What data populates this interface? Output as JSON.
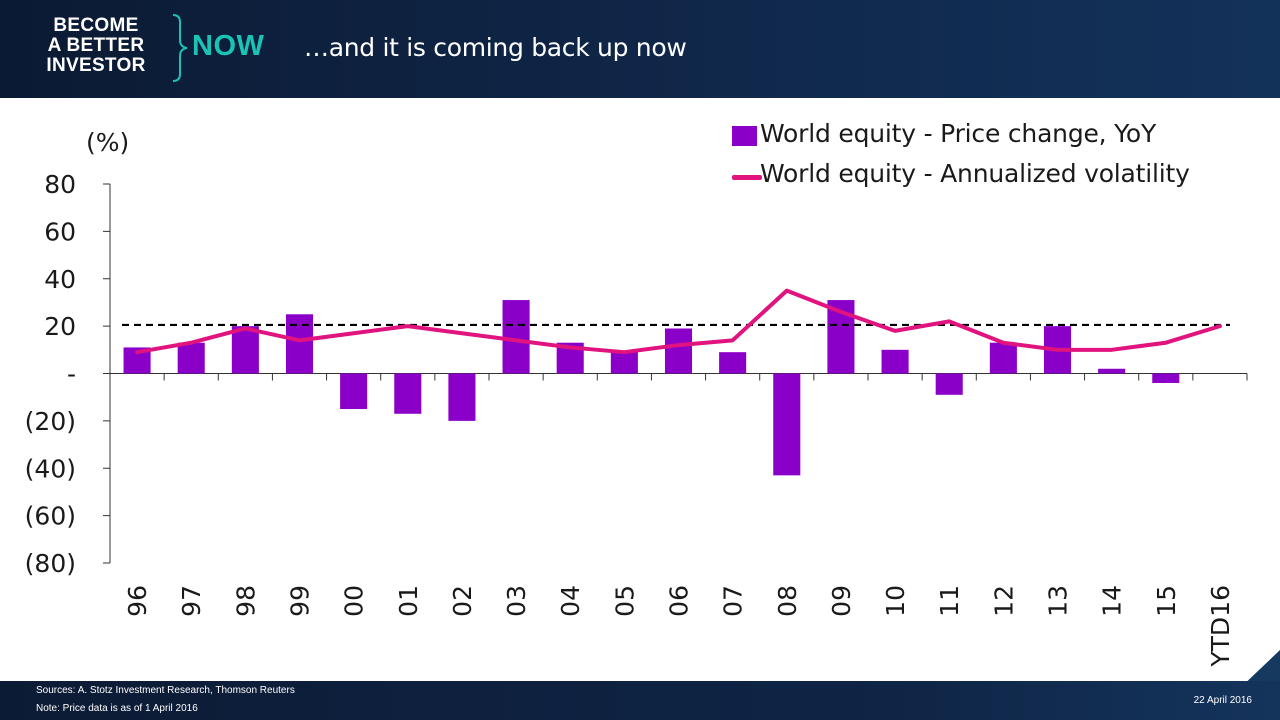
{
  "header": {
    "logo_line1": "BECOME",
    "logo_line2": "A BETTER",
    "logo_line3": "INVESTOR",
    "logo_now": "NOW",
    "title": "…and it is coming back up now"
  },
  "footer": {
    "sources": "Sources: A. Stotz Investment Research, Thomson Reuters",
    "note": "Note: Price data is as of 1 April 2016",
    "date": "22 April 2016"
  },
  "colors": {
    "bar": "#8b00c9",
    "line": "#e0137f",
    "header_bg": "#0f2546",
    "accent": "#19c3b6"
  },
  "chart_data": {
    "type": "bar",
    "unit_label": "(%)",
    "categories": [
      "96",
      "97",
      "98",
      "99",
      "00",
      "01",
      "02",
      "03",
      "04",
      "05",
      "06",
      "07",
      "08",
      "09",
      "10",
      "11",
      "12",
      "13",
      "14",
      "15",
      "YTD16"
    ],
    "series": [
      {
        "name": "World equity - Price change, YoY",
        "type": "bar",
        "values": [
          11,
          13,
          20,
          25,
          -15,
          -17,
          -20,
          31,
          13,
          9,
          19,
          9,
          -43,
          31,
          10,
          -9,
          13,
          20,
          2,
          -4,
          null
        ]
      },
      {
        "name": "World equity - Annualized volatility",
        "type": "line",
        "values": [
          9,
          13,
          19,
          14,
          17,
          20,
          17,
          14,
          11,
          9,
          12,
          14,
          35,
          26,
          18,
          22,
          13,
          10,
          10,
          13,
          20
        ]
      }
    ],
    "reference_line": {
      "value": 20.5,
      "style": "dashed"
    },
    "ylim": [
      -80,
      80
    ],
    "yticks": [
      80,
      60,
      40,
      20,
      0,
      -20,
      -40,
      -60,
      -80
    ],
    "ytick_labels": [
      "80",
      "60",
      "40",
      "20",
      "-",
      "(20)",
      "(40)",
      "(60)",
      "(80)"
    ],
    "legend_position": "top-right",
    "grid": false
  }
}
